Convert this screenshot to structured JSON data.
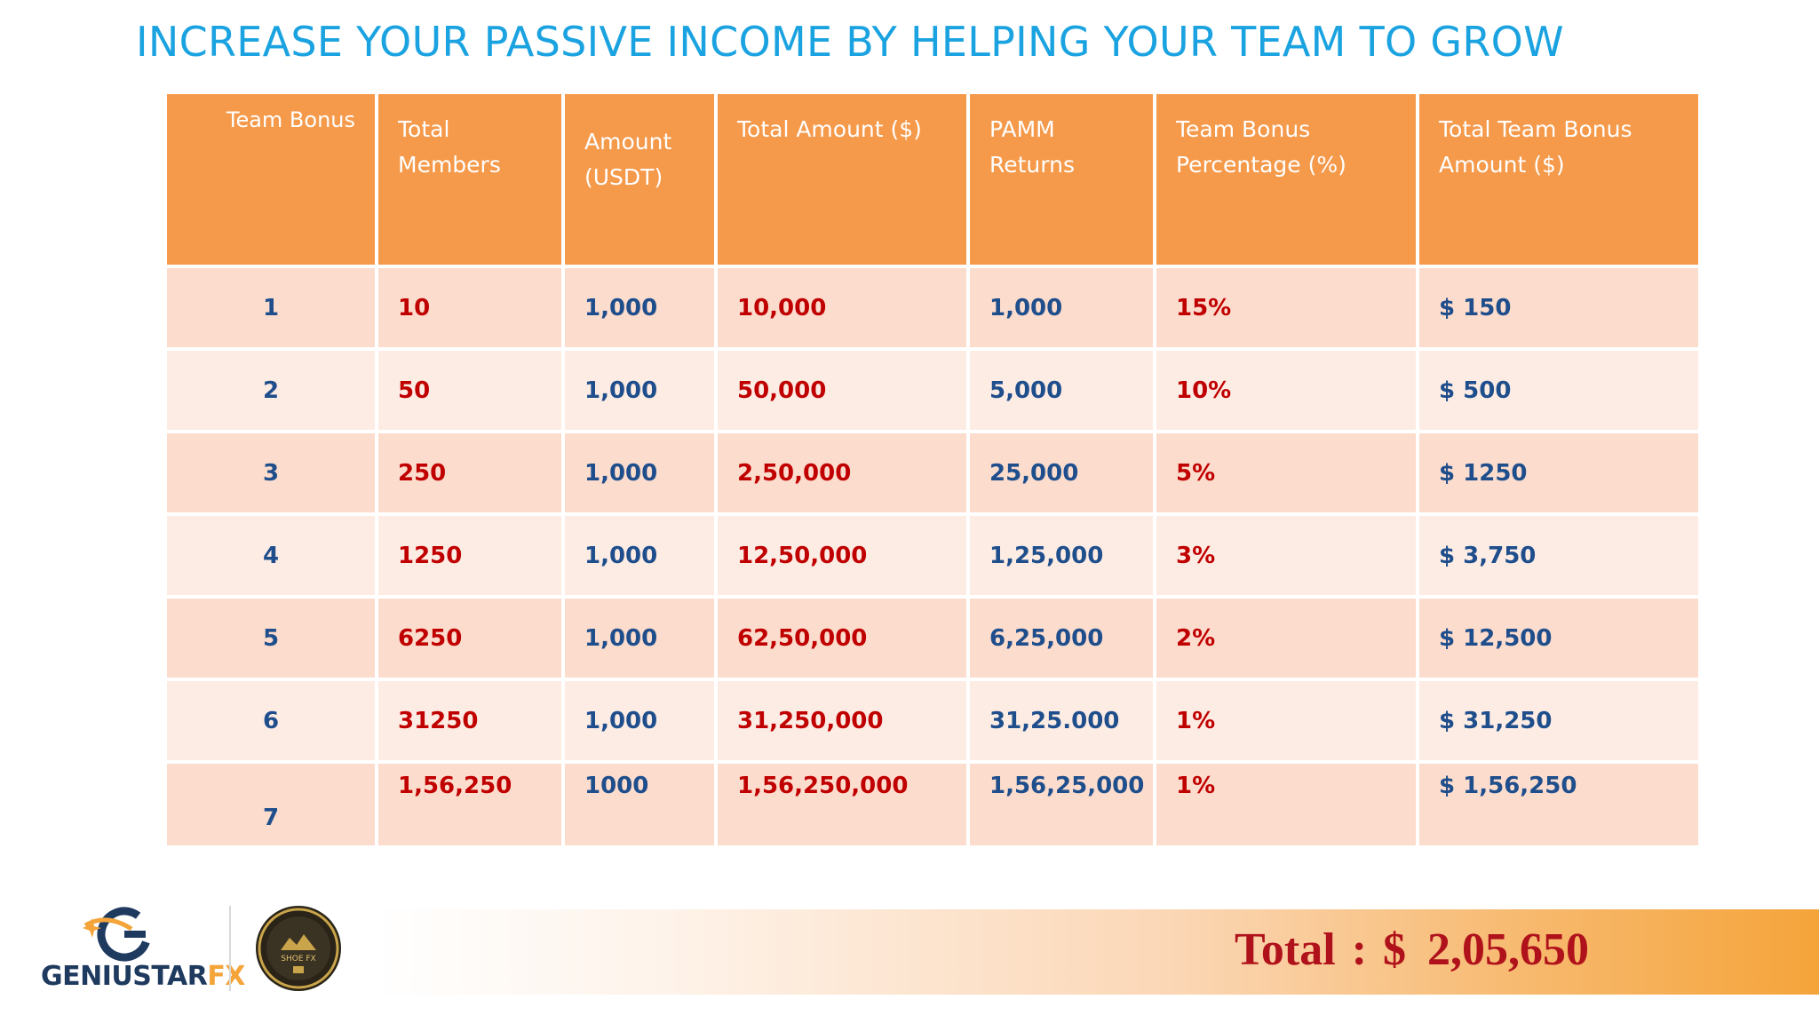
{
  "title": "INCREASE YOUR PASSIVE INCOME BY HELPING YOUR TEAM TO GROW",
  "table": {
    "headers": [
      "Team Bonus",
      "Total Members",
      "Amount (USDT)",
      "Total Amount ($)",
      "PAMM Returns",
      "Team Bonus Percentage (%)",
      "Total Team Bonus Amount ($)"
    ],
    "rows": [
      [
        "1",
        "10",
        "1,000",
        "10,000",
        "1,000",
        "15%",
        "$ 150"
      ],
      [
        "2",
        "50",
        "1,000",
        "50,000",
        "5,000",
        "10%",
        "$ 500"
      ],
      [
        "3",
        "250",
        "1,000",
        "2,50,000",
        "25,000",
        "5%",
        "$ 1250"
      ],
      [
        "4",
        "1250",
        "1,000",
        "12,50,000",
        "1,25,000",
        "3%",
        "$ 3,750"
      ],
      [
        "5",
        "6250",
        "1,000",
        "62,50,000",
        "6,25,000",
        "2%",
        "$ 12,500"
      ],
      [
        "6",
        "31250",
        "1,000",
        "31,250,000",
        "31,25.000",
        "1%",
        "$ 31,250"
      ],
      [
        "7",
        "1,56,250",
        "1000",
        "1,56,250,000",
        "1,56,25,000",
        "1%",
        "$ 1,56,250"
      ]
    ]
  },
  "total": {
    "label": "Total",
    "colon": ":",
    "currency": "$",
    "value": "2,05,650"
  },
  "brand": {
    "name_part1": "GENIUSTAR",
    "name_part2": "FX",
    "badge_text": "SHOE FX",
    "primary_color": "#1f3a5f",
    "accent_color": "#f5a43a"
  },
  "colors": {
    "title": "#1aa3e0",
    "header_bg": "#f5994a",
    "row_odd": "#fcdccd",
    "row_even": "#fdece4",
    "blue_text": "#1f4e8c",
    "red_text": "#c00000",
    "total_text": "#b0121b"
  }
}
